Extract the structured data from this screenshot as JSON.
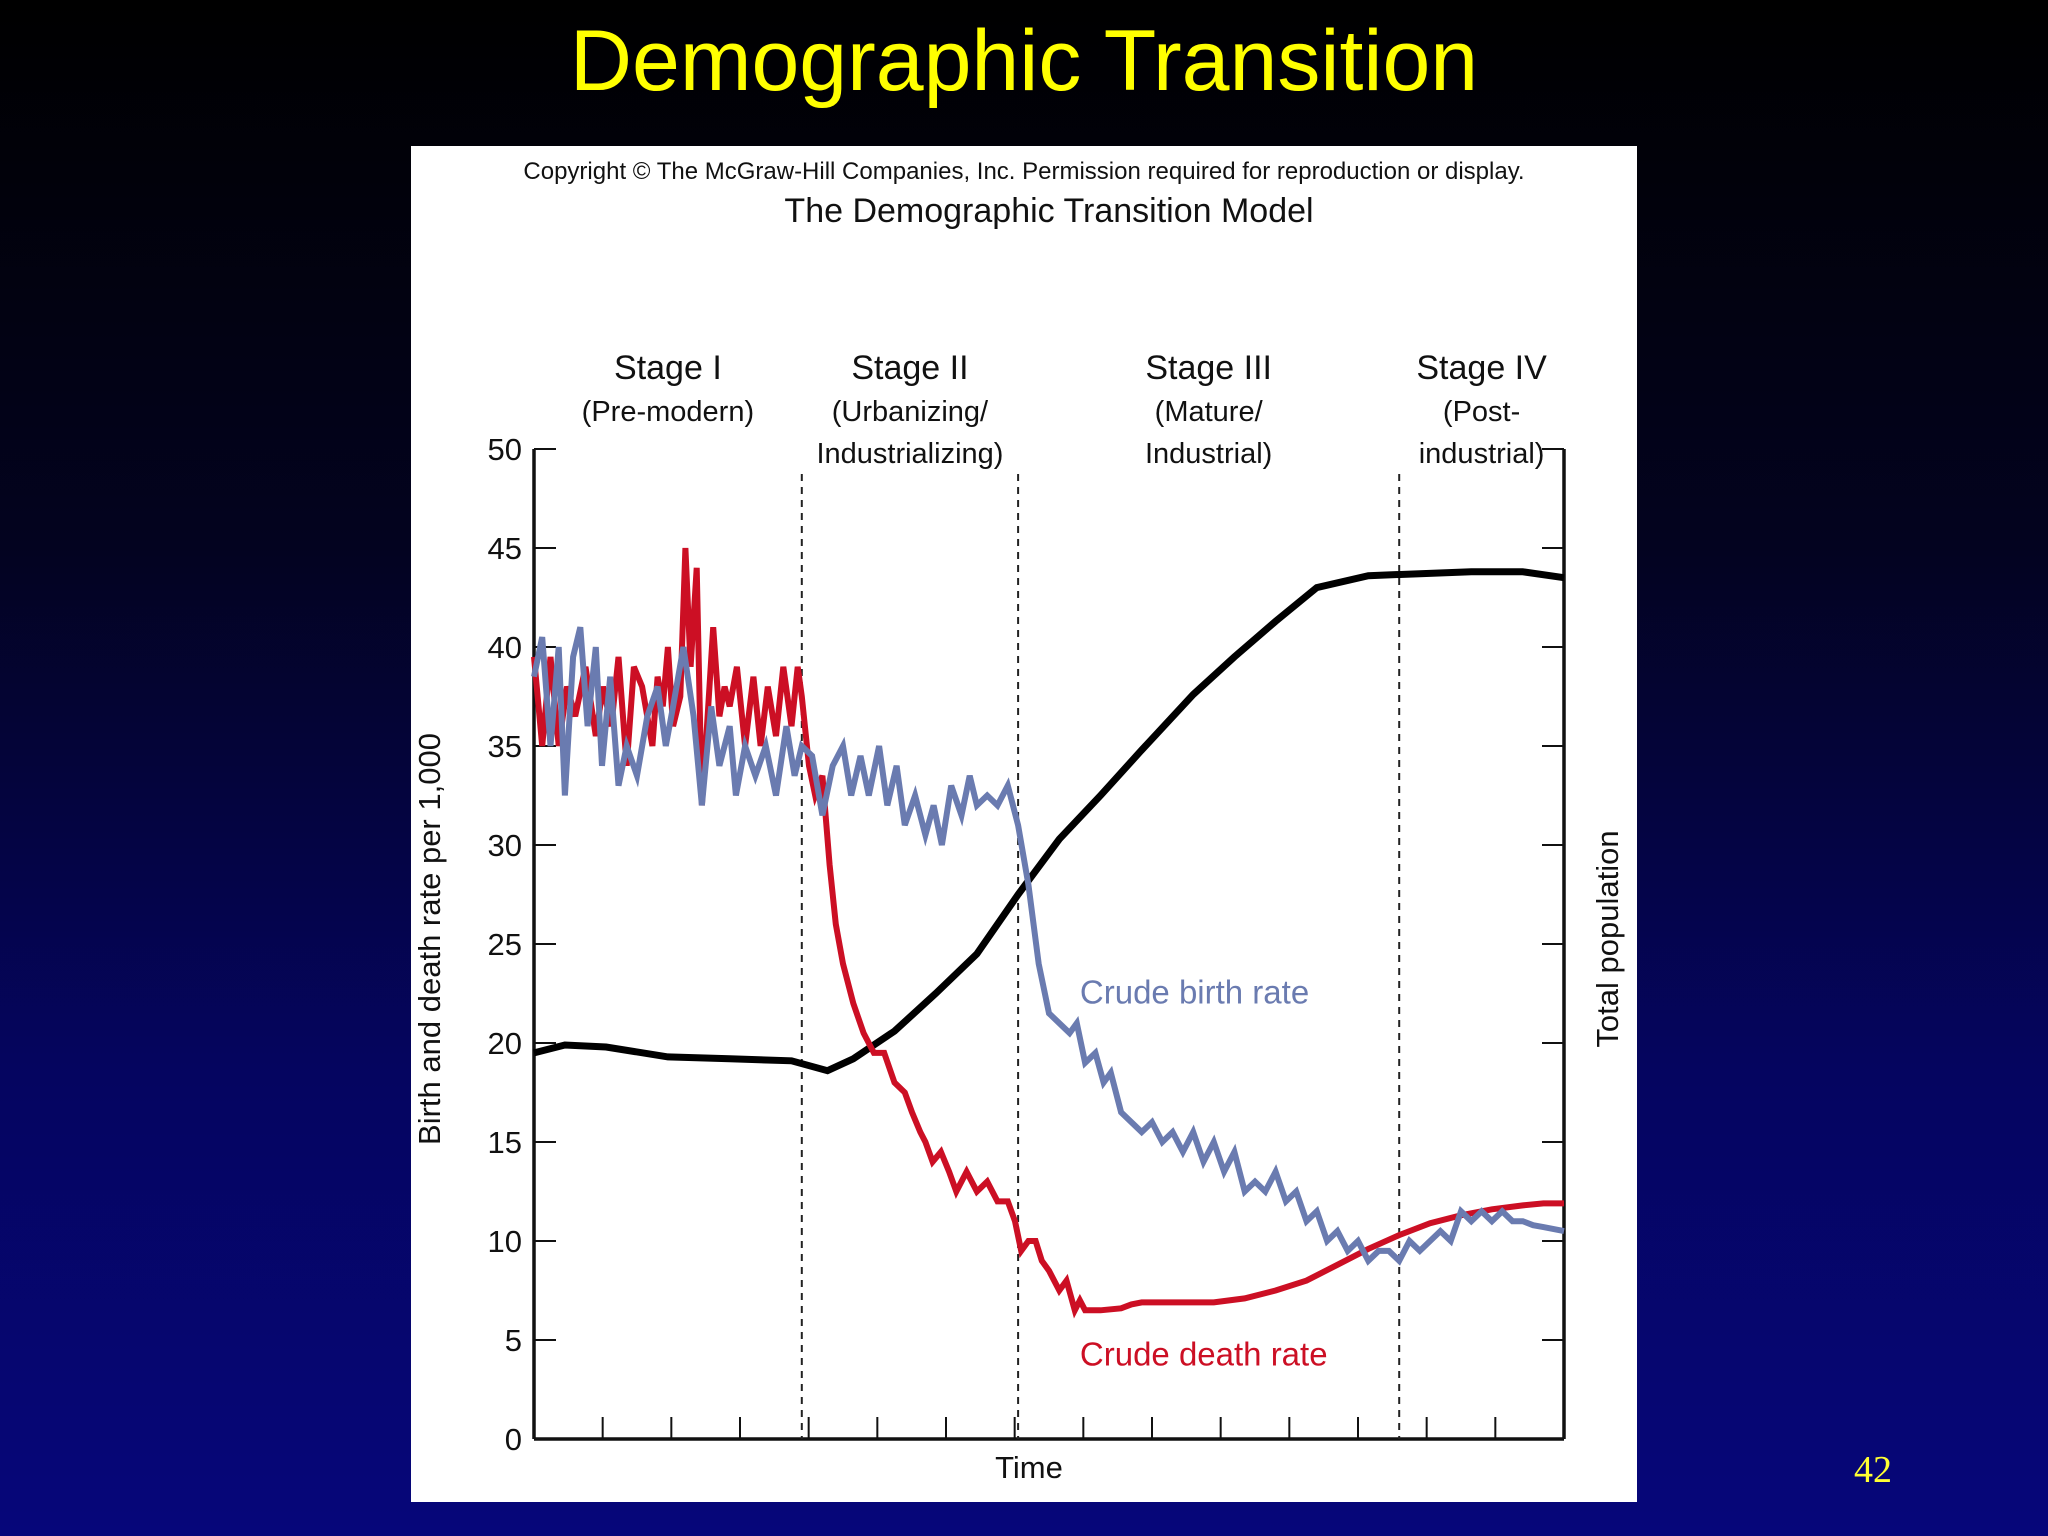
{
  "slide": {
    "title": "Demographic Transition",
    "page_number": "42"
  },
  "figure": {
    "copyright": "Copyright © The McGraw-Hill Companies, Inc. Permission required for reproduction or display."
  },
  "colors": {
    "title": "#ffff00",
    "birth": "#6a7bb0",
    "death": "#cc0f24",
    "population": "#000000"
  },
  "chart_data": {
    "type": "line",
    "title": "The Demographic Transition Model",
    "xlabel": "Time",
    "ylabel": "Birth and death rate per 1,000",
    "y2label": "Total population",
    "xlim": [
      0,
      100
    ],
    "ylim": [
      0,
      50
    ],
    "yticks": [
      "0",
      "5",
      "10",
      "15",
      "20",
      "25",
      "30",
      "35",
      "40",
      "45",
      "50"
    ],
    "grid": false,
    "stages": [
      {
        "label": "Stage I",
        "sub1": "(Pre-modern)",
        "sub2": "",
        "start": 0,
        "end": 26
      },
      {
        "label": "Stage II",
        "sub1": "(Urbanizing/",
        "sub2": "Industrializing)",
        "start": 26,
        "end": 47
      },
      {
        "label": "Stage III",
        "sub1": "(Mature/",
        "sub2": "Industrial)",
        "start": 47,
        "end": 84
      },
      {
        "label": "Stage IV",
        "sub1": "(Post-",
        "sub2": "industrial)",
        "start": 84,
        "end": 100
      }
    ],
    "series": [
      {
        "name": "Crude birth rate",
        "points": [
          [
            0,
            38.5
          ],
          [
            0.8,
            40.5
          ],
          [
            1.6,
            35
          ],
          [
            2.4,
            40
          ],
          [
            3,
            32.5
          ],
          [
            3.8,
            39.5
          ],
          [
            4.5,
            41
          ],
          [
            5.2,
            36
          ],
          [
            6,
            40
          ],
          [
            6.6,
            34
          ],
          [
            7.4,
            38.5
          ],
          [
            8.2,
            33
          ],
          [
            9,
            35
          ],
          [
            10,
            33.5
          ],
          [
            11,
            36.5
          ],
          [
            12,
            38
          ],
          [
            12.8,
            35
          ],
          [
            13.5,
            37
          ],
          [
            14.5,
            40
          ],
          [
            15.5,
            36.5
          ],
          [
            16.3,
            32
          ],
          [
            17.2,
            37
          ],
          [
            18,
            34
          ],
          [
            19,
            36
          ],
          [
            19.6,
            32.5
          ],
          [
            20.5,
            35
          ],
          [
            21.5,
            33.5
          ],
          [
            22.5,
            35
          ],
          [
            23.5,
            32.5
          ],
          [
            24.5,
            36
          ],
          [
            25.3,
            33.5
          ],
          [
            26,
            35
          ],
          [
            27,
            34.5
          ],
          [
            28,
            31.5
          ],
          [
            29,
            34
          ],
          [
            30,
            35
          ],
          [
            30.8,
            32.5
          ],
          [
            31.7,
            34.5
          ],
          [
            32.5,
            32.5
          ],
          [
            33.5,
            35
          ],
          [
            34.3,
            32
          ],
          [
            35.2,
            34
          ],
          [
            36,
            31
          ],
          [
            37,
            32.5
          ],
          [
            38,
            30.5
          ],
          [
            38.8,
            32
          ],
          [
            39.6,
            30
          ],
          [
            40.5,
            33
          ],
          [
            41.5,
            31.5
          ],
          [
            42.3,
            33.5
          ],
          [
            43,
            32
          ],
          [
            44,
            32.5
          ],
          [
            45,
            32
          ],
          [
            46,
            33
          ],
          [
            47,
            31
          ],
          [
            48,
            28
          ],
          [
            49,
            24
          ],
          [
            50,
            21.5
          ],
          [
            51,
            21
          ],
          [
            52,
            20.5
          ],
          [
            52.7,
            21
          ],
          [
            53.5,
            19
          ],
          [
            54.5,
            19.5
          ],
          [
            55.3,
            18
          ],
          [
            56,
            18.5
          ],
          [
            57,
            16.5
          ],
          [
            58,
            16
          ],
          [
            59,
            15.5
          ],
          [
            60,
            16
          ],
          [
            61,
            15
          ],
          [
            62,
            15.5
          ],
          [
            63,
            14.5
          ],
          [
            64,
            15.5
          ],
          [
            65,
            14
          ],
          [
            66,
            15
          ],
          [
            67,
            13.5
          ],
          [
            68,
            14.5
          ],
          [
            69,
            12.5
          ],
          [
            70,
            13
          ],
          [
            71,
            12.5
          ],
          [
            72,
            13.5
          ],
          [
            73,
            12
          ],
          [
            74,
            12.5
          ],
          [
            75,
            11
          ],
          [
            76,
            11.5
          ],
          [
            77,
            10
          ],
          [
            78,
            10.5
          ],
          [
            79,
            9.5
          ],
          [
            80,
            10
          ],
          [
            81,
            9
          ],
          [
            82,
            9.5
          ],
          [
            83,
            9.5
          ],
          [
            84,
            9
          ],
          [
            85,
            10
          ],
          [
            86,
            9.5
          ],
          [
            87,
            10
          ],
          [
            88,
            10.5
          ],
          [
            89,
            10
          ],
          [
            90,
            11.5
          ],
          [
            91,
            11
          ],
          [
            92,
            11.5
          ],
          [
            93,
            11
          ],
          [
            94,
            11.5
          ],
          [
            95,
            11
          ],
          [
            96,
            11
          ],
          [
            97,
            10.8
          ],
          [
            98,
            10.7
          ],
          [
            99,
            10.6
          ],
          [
            100,
            10.5
          ]
        ],
        "label_at": [
          53,
          22
        ],
        "label_anchor": "start"
      },
      {
        "name": "Crude death rate",
        "points": [
          [
            0,
            39.5
          ],
          [
            0.8,
            35
          ],
          [
            1.6,
            39.5
          ],
          [
            2.4,
            35
          ],
          [
            3.2,
            38
          ],
          [
            4,
            36.5
          ],
          [
            5,
            39
          ],
          [
            6,
            35.5
          ],
          [
            6.7,
            38
          ],
          [
            7.5,
            36
          ],
          [
            8.2,
            39.5
          ],
          [
            9,
            34
          ],
          [
            9.7,
            39
          ],
          [
            10.5,
            38
          ],
          [
            11.5,
            35
          ],
          [
            12,
            38.5
          ],
          [
            12.5,
            37
          ],
          [
            13,
            40
          ],
          [
            13.5,
            36
          ],
          [
            14.2,
            37.5
          ],
          [
            14.7,
            45
          ],
          [
            15.2,
            39
          ],
          [
            15.8,
            44
          ],
          [
            16.3,
            32
          ],
          [
            16.8,
            36
          ],
          [
            17.4,
            41
          ],
          [
            18,
            36.5
          ],
          [
            18.5,
            38
          ],
          [
            19,
            37
          ],
          [
            19.7,
            39
          ],
          [
            20.5,
            35
          ],
          [
            21.3,
            38.5
          ],
          [
            22,
            35
          ],
          [
            22.7,
            38
          ],
          [
            23.5,
            35.5
          ],
          [
            24.2,
            39
          ],
          [
            25,
            36
          ],
          [
            25.6,
            39
          ],
          [
            26,
            37.5
          ],
          [
            26.7,
            34
          ],
          [
            27.3,
            32.5
          ],
          [
            28,
            33.5
          ],
          [
            28.7,
            29
          ],
          [
            29.3,
            26
          ],
          [
            30,
            24
          ],
          [
            31,
            22
          ],
          [
            32,
            20.5
          ],
          [
            33,
            19.5
          ],
          [
            34,
            19.5
          ],
          [
            35,
            18
          ],
          [
            36,
            17.5
          ],
          [
            36.7,
            16.5
          ],
          [
            37.5,
            15.5
          ],
          [
            38,
            15
          ],
          [
            38.7,
            14
          ],
          [
            39.5,
            14.5
          ],
          [
            40.3,
            13.5
          ],
          [
            41,
            12.5
          ],
          [
            42,
            13.5
          ],
          [
            43,
            12.5
          ],
          [
            44,
            13
          ],
          [
            45,
            12
          ],
          [
            46,
            12
          ],
          [
            46.7,
            11
          ],
          [
            47.3,
            9.5
          ],
          [
            48,
            10
          ],
          [
            48.7,
            10
          ],
          [
            49.3,
            9
          ],
          [
            50,
            8.5
          ],
          [
            51,
            7.5
          ],
          [
            51.7,
            8
          ],
          [
            52.5,
            6.5
          ],
          [
            53,
            7
          ],
          [
            53.5,
            6.5
          ],
          [
            55,
            6.5
          ],
          [
            57,
            6.6
          ],
          [
            58,
            6.8
          ],
          [
            59,
            6.9
          ],
          [
            60,
            6.9
          ],
          [
            63,
            6.9
          ],
          [
            66,
            6.9
          ],
          [
            69,
            7.1
          ],
          [
            72,
            7.5
          ],
          [
            75,
            8
          ],
          [
            78,
            8.8
          ],
          [
            81,
            9.6
          ],
          [
            84,
            10.3
          ],
          [
            87,
            10.9
          ],
          [
            90,
            11.3
          ],
          [
            93,
            11.6
          ],
          [
            96,
            11.8
          ],
          [
            98,
            11.9
          ],
          [
            100,
            11.9
          ]
        ],
        "label_at": [
          53,
          3.7
        ],
        "label_anchor": "start"
      },
      {
        "name": "",
        "points": [
          [
            0,
            19.5
          ],
          [
            3,
            19.9
          ],
          [
            7,
            19.8
          ],
          [
            13,
            19.3
          ],
          [
            19,
            19.2
          ],
          [
            25,
            19.1
          ],
          [
            28.5,
            18.6
          ],
          [
            31,
            19.2
          ],
          [
            35,
            20.6
          ],
          [
            39,
            22.5
          ],
          [
            43,
            24.5
          ],
          [
            47,
            27.5
          ],
          [
            51,
            30.3
          ],
          [
            55,
            32.5
          ],
          [
            59,
            34.8
          ],
          [
            64,
            37.6
          ],
          [
            68,
            39.5
          ],
          [
            72,
            41.3
          ],
          [
            76,
            43
          ],
          [
            81,
            43.6
          ],
          [
            86,
            43.7
          ],
          [
            91,
            43.8
          ],
          [
            96,
            43.8
          ],
          [
            100,
            43.5
          ]
        ]
      }
    ]
  }
}
